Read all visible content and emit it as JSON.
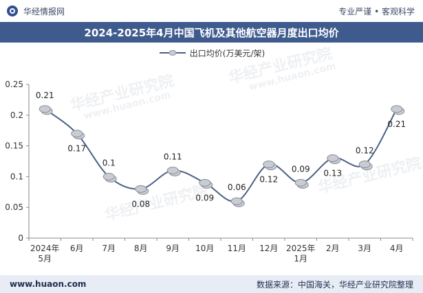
{
  "header": {
    "brand": "华经情报网",
    "tagline": "专业严谨 • 客观科学"
  },
  "title": "2024-2025年4月中国飞机及其他航空器月度出口均价",
  "legend": {
    "label": "出口均价(万美元/架)",
    "color": "#4a5e85"
  },
  "watermarks": [
    "华经产业研究院",
    "www.huaon.com"
  ],
  "chart_data": {
    "type": "line",
    "categories": [
      "2024年\n5月",
      "6月",
      "7月",
      "8月",
      "9月",
      "10月",
      "11月",
      "12月",
      "2025年\n1月",
      "2月",
      "3月",
      "4月"
    ],
    "series": [
      {
        "name": "出口均价(万美元/架)",
        "values": [
          0.21,
          0.17,
          0.1,
          0.08,
          0.11,
          0.09,
          0.06,
          0.12,
          0.09,
          0.13,
          0.12,
          0.21
        ],
        "labels": [
          "0.21",
          "0.17",
          "0.1",
          "0.08",
          "0.11",
          "0.09",
          "0.06",
          "0.12",
          "0.09",
          "0.13",
          "0.12",
          "0.21"
        ],
        "label_position": [
          "above",
          "below",
          "above",
          "below",
          "above",
          "below",
          "above",
          "below",
          "above",
          "below",
          "above",
          "below"
        ]
      }
    ],
    "ylim": [
      0,
      0.25
    ],
    "yticks": [
      "0",
      "0.05",
      "0.1",
      "0.15",
      "0.2",
      "0.25"
    ],
    "ytick_values": [
      0,
      0.05,
      0.1,
      0.15,
      0.2,
      0.25
    ],
    "grid": false,
    "legend_position": "top-center",
    "colors": {
      "line": "#4a5e85",
      "marker": "#c9ccd3",
      "marker_edge": "#8a8f99",
      "axis": "#888888"
    }
  },
  "footer": {
    "website": "www.huaon.com",
    "source": "数据来源：中国海关，华经产业研究院整理"
  }
}
